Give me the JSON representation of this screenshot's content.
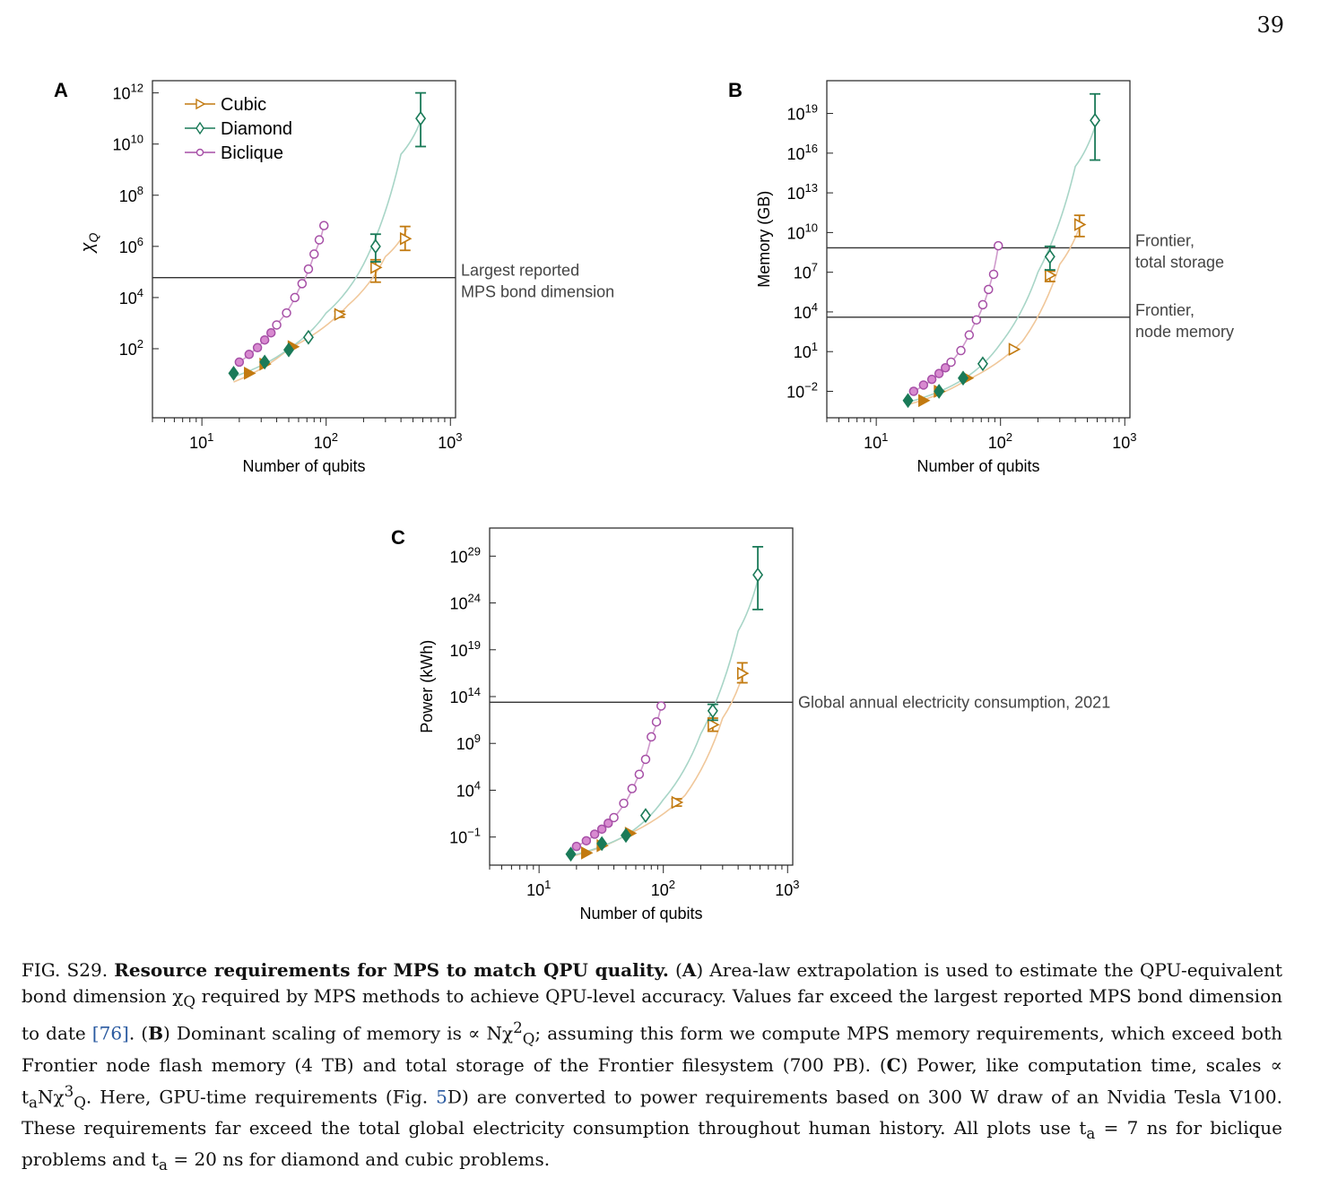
{
  "page_number": "39",
  "legend": [
    "Cubic",
    "Diamond",
    "Biclique"
  ],
  "colors": {
    "cubic": "#c27a10",
    "diamond": "#1a7a58",
    "biclique": "#a64fa6",
    "cubic_fit": "#f0c79a",
    "diamond_fit": "#a8d5c7",
    "biclique_fit": "#cf9acc"
  },
  "chart_data": [
    {
      "panel": "A",
      "type": "scatter",
      "xscale": "log",
      "yscale": "log",
      "xlim": [
        4,
        1100
      ],
      "ylim": [
        0.2,
        3000000000000.0
      ],
      "xlabel": "Number of qubits",
      "ylabel": "χQ",
      "xticks": [
        "10^1",
        "10^2",
        "10^3"
      ],
      "yticks": [
        "10^2",
        "10^4",
        "10^6",
        "10^8",
        "10^10",
        "10^12"
      ],
      "hline": {
        "y": 60000,
        "label": [
          "Largest reported",
          "MPS bond dimension"
        ]
      },
      "series": [
        {
          "name": "Cubic",
          "marker": "triangle-right",
          "points": [
            {
              "x": 24,
              "y": 11,
              "f": 1
            },
            {
              "x": 32,
              "y": 25,
              "f": 1
            },
            {
              "x": 54,
              "y": 120,
              "f": 1
            },
            {
              "x": 128,
              "y": 2200,
              "f": 0,
              "e": [
                1700,
                2900
              ]
            },
            {
              "x": 250,
              "y": 150000,
              "f": 0,
              "e": [
                40000,
                300000
              ]
            },
            {
              "x": 432,
              "y": 2000000,
              "f": 0,
              "e": [
                700000,
                6000000
              ]
            }
          ],
          "fit": [
            [
              18,
              5
            ],
            [
              50,
              100
            ],
            [
              150,
              5000
            ],
            [
              300,
              400000
            ],
            [
              450,
              5000000
            ]
          ]
        },
        {
          "name": "Diamond",
          "marker": "diamond",
          "points": [
            {
              "x": 18,
              "y": 11,
              "f": 1
            },
            {
              "x": 32,
              "y": 30,
              "f": 1
            },
            {
              "x": 50,
              "y": 90,
              "f": 1
            },
            {
              "x": 72,
              "y": 280,
              "f": 0
            },
            {
              "x": 250,
              "y": 1000000,
              "f": 0,
              "e": [
                250000,
                3000000
              ]
            },
            {
              "x": 576,
              "y": 100000000000.0,
              "f": 0,
              "e": [
                8000000000.0,
                1000000000000.0
              ]
            }
          ],
          "fit": [
            [
              18,
              8
            ],
            [
              50,
              100
            ],
            [
              100,
              2500
            ],
            [
              200,
              200000
            ],
            [
              400,
              4000000000.0
            ],
            [
              576,
              80000000000.0
            ]
          ]
        },
        {
          "name": "Biclique",
          "marker": "circle",
          "points": [
            {
              "x": 20,
              "y": 30,
              "f": 1
            },
            {
              "x": 24,
              "y": 60,
              "f": 1
            },
            {
              "x": 28,
              "y": 110,
              "f": 1
            },
            {
              "x": 32,
              "y": 220,
              "f": 1
            },
            {
              "x": 36,
              "y": 420,
              "f": 1
            },
            {
              "x": 40,
              "y": 850,
              "f": 0
            },
            {
              "x": 48,
              "y": 2500,
              "f": 0
            },
            {
              "x": 56,
              "y": 10000,
              "f": 0
            },
            {
              "x": 64,
              "y": 35000,
              "f": 0
            },
            {
              "x": 72,
              "y": 130000,
              "f": 0
            },
            {
              "x": 80,
              "y": 500000,
              "f": 0
            },
            {
              "x": 88,
              "y": 1800000,
              "f": 0
            },
            {
              "x": 96,
              "y": 6500000,
              "f": 0
            }
          ],
          "fit": [
            [
              20,
              30
            ],
            [
              40,
              900
            ],
            [
              60,
              20000
            ],
            [
              80,
              500000
            ],
            [
              96,
              6500000
            ]
          ]
        }
      ]
    },
    {
      "panel": "B",
      "type": "scatter",
      "xscale": "log",
      "yscale": "log",
      "xlim": [
        4,
        1100
      ],
      "ylim": [
        0.0001,
        3e+21
      ],
      "xlabel": "Number of qubits",
      "ylabel": "Memory (GB)",
      "xticks": [
        "10^1",
        "10^2",
        "10^3"
      ],
      "yticks": [
        "10^-2",
        "10^1",
        "10^4",
        "10^7",
        "10^10",
        "10^13",
        "10^16",
        "10^19"
      ],
      "hlines": [
        {
          "y": 700000000,
          "label": [
            "Frontier,",
            "total storage"
          ]
        },
        {
          "y": 4000,
          "label": [
            "Frontier,",
            "node memory"
          ]
        }
      ],
      "series": [
        {
          "name": "Cubic",
          "marker": "triangle-right",
          "points": [
            {
              "x": 24,
              "y": 0.002,
              "f": 1
            },
            {
              "x": 32,
              "y": 0.01,
              "f": 1
            },
            {
              "x": 54,
              "y": 0.1,
              "f": 1
            },
            {
              "x": 128,
              "y": 15,
              "f": 0
            },
            {
              "x": 250,
              "y": 6000000,
              "f": 0,
              "e": [
                2000000,
                12000000
              ]
            },
            {
              "x": 432,
              "y": 40000000000.0,
              "f": 0,
              "e": [
                5000000000.0,
                200000000000.0
              ]
            }
          ],
          "fit": [
            [
              18,
              0.001
            ],
            [
              50,
              0.05
            ],
            [
              150,
              60
            ],
            [
              300,
              40000000.0
            ],
            [
              450,
              70000000000.0
            ]
          ]
        },
        {
          "name": "Diamond",
          "marker": "diamond",
          "points": [
            {
              "x": 18,
              "y": 0.002,
              "f": 1
            },
            {
              "x": 32,
              "y": 0.01,
              "f": 1
            },
            {
              "x": 50,
              "y": 0.1,
              "f": 1
            },
            {
              "x": 72,
              "y": 1.2,
              "f": 0
            },
            {
              "x": 250,
              "y": 150000000.0,
              "f": 0,
              "e": [
                15000000.0,
                900000000.0
              ]
            },
            {
              "x": 576,
              "y": 3e+18,
              "f": 0,
              "e": [
                3000000000000000.0,
                3e+20
              ]
            }
          ],
          "fit": [
            [
              18,
              0.0015
            ],
            [
              50,
              0.08
            ],
            [
              100,
              40
            ],
            [
              200,
              10000000.0
            ],
            [
              400,
              1000000000000000.0
            ],
            [
              576,
              1e+18
            ]
          ]
        },
        {
          "name": "Biclique",
          "marker": "circle",
          "points": [
            {
              "x": 20,
              "y": 0.01,
              "f": 1
            },
            {
              "x": 24,
              "y": 0.03,
              "f": 1
            },
            {
              "x": 28,
              "y": 0.08,
              "f": 1
            },
            {
              "x": 32,
              "y": 0.22,
              "f": 1
            },
            {
              "x": 36,
              "y": 0.6,
              "f": 1
            },
            {
              "x": 40,
              "y": 1.6,
              "f": 0
            },
            {
              "x": 48,
              "y": 12,
              "f": 0
            },
            {
              "x": 56,
              "y": 180,
              "f": 0
            },
            {
              "x": 64,
              "y": 2500,
              "f": 0
            },
            {
              "x": 72,
              "y": 35000,
              "f": 0
            },
            {
              "x": 80,
              "y": 500000,
              "f": 0
            },
            {
              "x": 88,
              "y": 7000000,
              "f": 0
            },
            {
              "x": 96,
              "y": 1000000000.0,
              "f": 0
            }
          ],
          "fit": [
            [
              20,
              0.01
            ],
            [
              40,
              1.6
            ],
            [
              60,
              800
            ],
            [
              80,
              500000
            ],
            [
              96,
              1000000000.0
            ]
          ]
        }
      ]
    },
    {
      "panel": "C",
      "type": "scatter",
      "xscale": "log",
      "yscale": "log",
      "xlim": [
        4,
        1100
      ],
      "ylim": [
        0.0001,
        1e+32
      ],
      "xlabel": "Number of qubits",
      "ylabel": "Power (kWh)",
      "xticks": [
        "10^1",
        "10^2",
        "10^3"
      ],
      "yticks": [
        "10^-1",
        "10^4",
        "10^9",
        "10^14",
        "10^19",
        "10^24",
        "10^29"
      ],
      "hline": {
        "y": 25000000000000.0,
        "label": [
          "Global annual electricity consumption, 2021"
        ]
      },
      "series": [
        {
          "name": "Cubic",
          "marker": "triangle-right",
          "points": [
            {
              "x": 24,
              "y": 0.002,
              "f": 1
            },
            {
              "x": 32,
              "y": 0.012,
              "f": 1
            },
            {
              "x": 54,
              "y": 0.25,
              "f": 1
            },
            {
              "x": 128,
              "y": 500,
              "f": 0,
              "e": [
                200,
                1200
              ]
            },
            {
              "x": 250,
              "y": 100000000000.0,
              "f": 0,
              "e": [
                20000000000.0,
                500000000000.0
              ]
            },
            {
              "x": 432,
              "y": 3e+16,
              "f": 0,
              "e": [
                3000000000000000.0,
                4e+17
              ]
            }
          ],
          "fit": [
            [
              18,
              0.0008
            ],
            [
              50,
              0.15
            ],
            [
              150,
              3000
            ],
            [
              300,
              500000000000.0
            ],
            [
              450,
              8e+16
            ]
          ]
        },
        {
          "name": "Diamond",
          "marker": "diamond",
          "points": [
            {
              "x": 18,
              "y": 0.0015,
              "f": 1
            },
            {
              "x": 32,
              "y": 0.02,
              "f": 1
            },
            {
              "x": 50,
              "y": 0.15,
              "f": 1
            },
            {
              "x": 72,
              "y": 20,
              "f": 0
            },
            {
              "x": 250,
              "y": 3000000000000.0,
              "f": 0,
              "e": [
                300000000000.0,
                15000000000000.0
              ]
            },
            {
              "x": 576,
              "y": 1e+27,
              "f": 0,
              "e": [
                2e+23,
                1e+30
              ]
            }
          ],
          "fit": [
            [
              18,
              0.001
            ],
            [
              50,
              0.15
            ],
            [
              100,
              1000
            ],
            [
              200,
              10000000000.0
            ],
            [
              400,
              1e+21
            ],
            [
              576,
              3e+26
            ]
          ]
        },
        {
          "name": "Biclique",
          "marker": "circle",
          "points": [
            {
              "x": 20,
              "y": 0.01,
              "f": 1
            },
            {
              "x": 24,
              "y": 0.04,
              "f": 1
            },
            {
              "x": 28,
              "y": 0.2,
              "f": 1
            },
            {
              "x": 32,
              "y": 0.7,
              "f": 1
            },
            {
              "x": 36,
              "y": 3,
              "f": 1
            },
            {
              "x": 40,
              "y": 12,
              "f": 0
            },
            {
              "x": 48,
              "y": 400,
              "f": 0
            },
            {
              "x": 56,
              "y": 15000,
              "f": 0
            },
            {
              "x": 64,
              "y": 500000,
              "f": 0
            },
            {
              "x": 72,
              "y": 20000000.0,
              "f": 0
            },
            {
              "x": 80,
              "y": 5000000000.0,
              "f": 0
            },
            {
              "x": 88,
              "y": 200000000000.0,
              "f": 0
            },
            {
              "x": 96,
              "y": 10000000000000.0,
              "f": 0
            }
          ],
          "fit": [
            [
              20,
              0.01
            ],
            [
              40,
              12
            ],
            [
              60,
              80000
            ],
            [
              80,
              5000000000.0
            ],
            [
              96,
              10000000000000.0
            ]
          ]
        }
      ]
    }
  ],
  "caption": {
    "fig_label": "FIG. S29.",
    "title": "Resource requirements for MPS to match QPU quality.",
    "part_a_label": "A",
    "part_a_text_1": " Area-law extrapolation is used to estimate the QPU-equivalent bond dimension χ",
    "part_a_sub": "Q",
    "part_a_text_2": " required by MPS methods to achieve QPU-level accuracy. Values far exceed the largest reported MPS bond dimension to date ",
    "ref_76": "[76]",
    "part_b_label": "B",
    "part_b_text_1": " Dominant scaling of memory is ∝ Nχ",
    "part_b_sup": "2",
    "part_b_sub": "Q",
    "part_b_text_2": "; assuming this form we compute MPS memory requirements, which exceed both Frontier node flash memory (4 TB) and total storage of the Frontier filesystem (700 PB).",
    "part_c_label": "C",
    "part_c_text_1": " Power, like computation time, scales ∝ t",
    "part_c_sub_a": "a",
    "part_c_text_2": "Nχ",
    "part_c_sup": "3",
    "part_c_sub_q": "Q",
    "part_c_text_3": ". Here, GPU-time requirements (Fig. ",
    "ref_5": "5",
    "part_c_text_4": "D) are converted to power requirements based on 300 W draw of an Nvidia Tesla V100. These requirements far exceed the total global electricity consumption throughout human history. All plots use t",
    "part_c_sub_a2": "a",
    "part_c_text_5": " = 7 ns for biclique problems and t",
    "part_c_sub_a3": "a",
    "part_c_text_6": " = 20 ns for diamond and cubic problems."
  }
}
